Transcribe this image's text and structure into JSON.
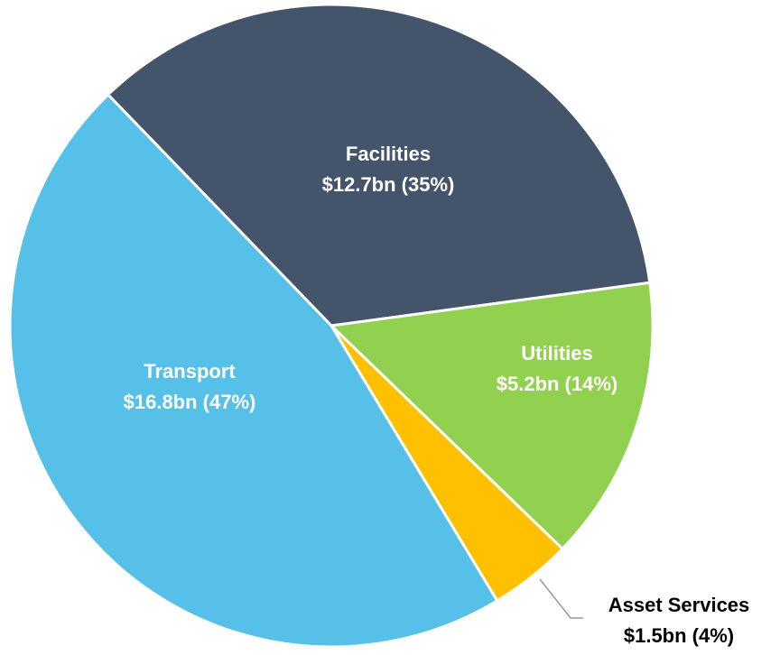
{
  "chart_data": {
    "type": "pie",
    "categories": [
      "Facilities",
      "Utilities",
      "Asset Services",
      "Transport"
    ],
    "values": [
      12.7,
      5.2,
      1.5,
      16.8
    ],
    "value_labels": [
      "$12.7bn (35%)",
      "$5.2bn (14%)",
      "$1.5bn (4%)",
      "$16.8bn (47%)"
    ],
    "colors": [
      "#44546a",
      "#92d050",
      "#ffc000",
      "#56c0e8"
    ]
  }
}
